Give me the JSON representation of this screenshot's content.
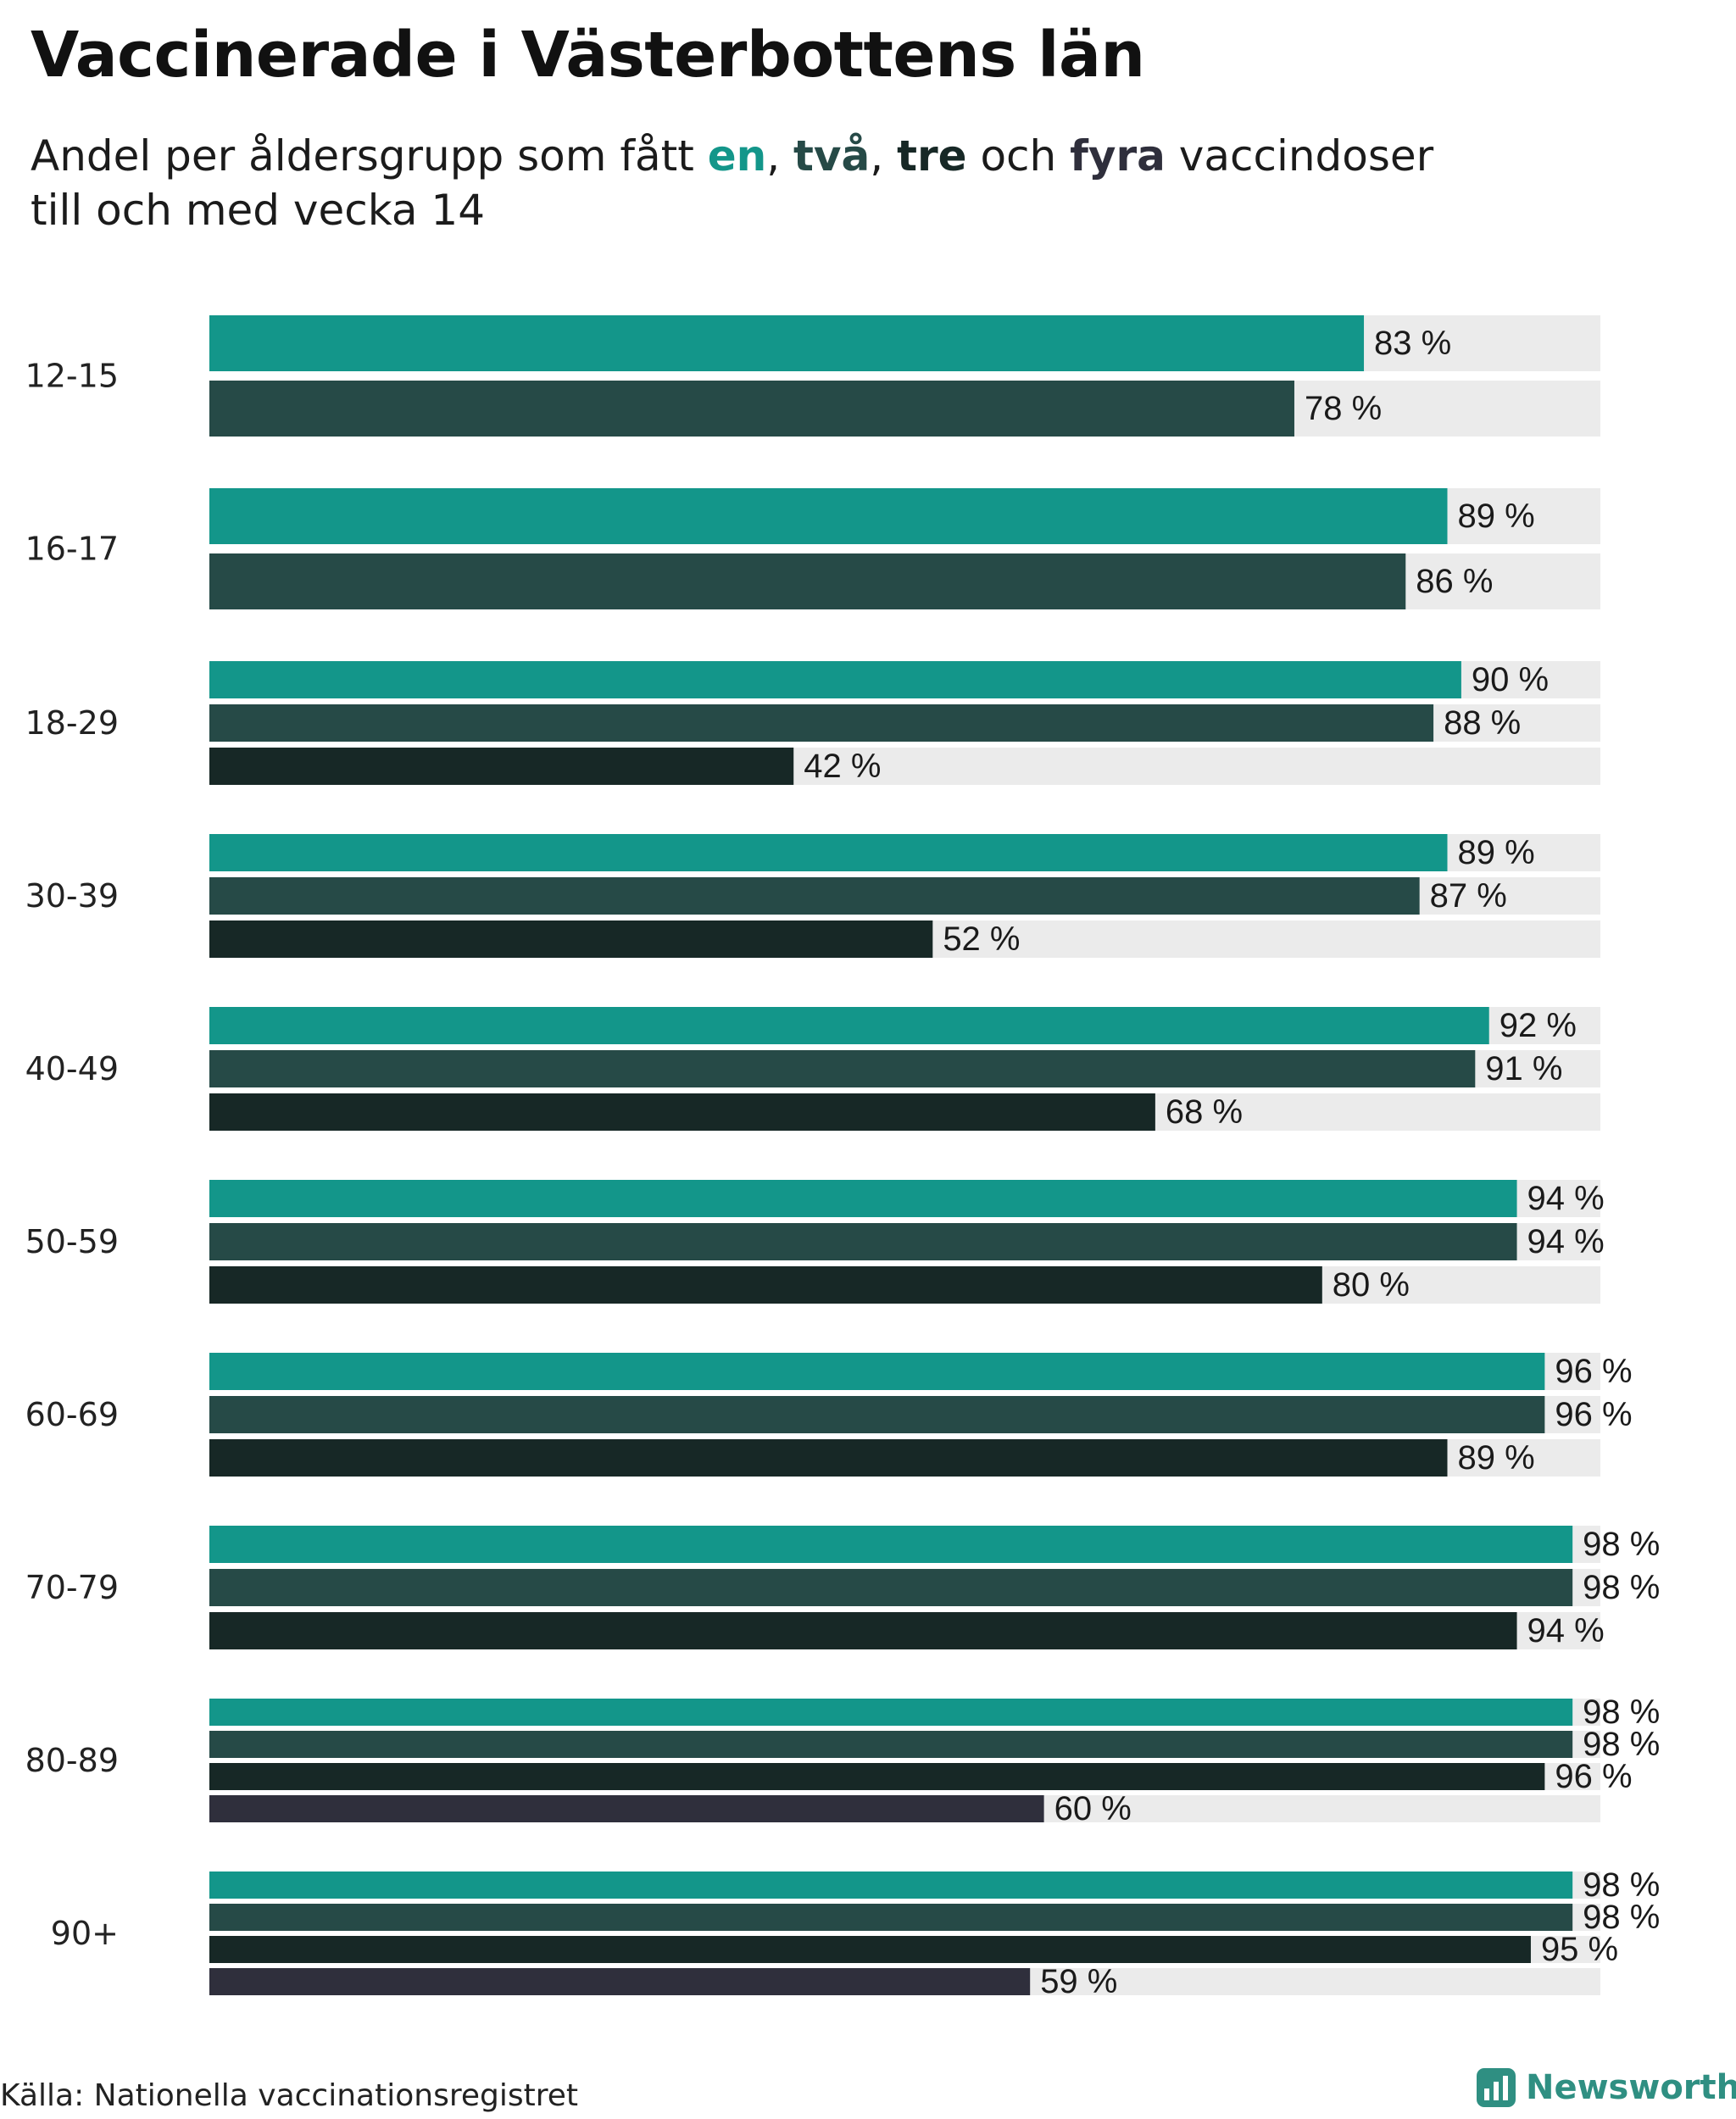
{
  "title": "Vaccinerade i Västerbottens län",
  "subtitle": {
    "prefix": "Andel per åldersgrupp som fått ",
    "en": "en",
    "sep1": ", ",
    "tva": "två",
    "sep2": ", ",
    "tre": "tre",
    "och": " och ",
    "fyra": "fyra",
    "suffix": " vaccindoser",
    "line2": "till och med vecka 14"
  },
  "colors": {
    "dose1": "#13968a",
    "dose2": "#264a47",
    "dose3": "#172826",
    "dose4": "#2f2f3c",
    "track": "#ebebeb",
    "subtitle_en": "#13968a",
    "subtitle_tva": "#264a47",
    "subtitle_tre": "#172826",
    "subtitle_fyra": "#2f2f3c"
  },
  "chart_data": {
    "type": "bar",
    "orientation": "horizontal",
    "title": "Vaccinerade i Västerbottens län",
    "subtitle": "Andel per åldersgrupp som fått en, två, tre och fyra vaccindoser till och med vecka 14",
    "xlim": [
      0,
      100
    ],
    "value_suffix": " %",
    "categories": [
      "12-15",
      "16-17",
      "18-29",
      "30-39",
      "40-49",
      "50-59",
      "60-69",
      "70-79",
      "80-89",
      "90+"
    ],
    "series": [
      {
        "name": "en",
        "values": [
          83,
          89,
          90,
          89,
          92,
          94,
          96,
          98,
          98,
          98
        ]
      },
      {
        "name": "två",
        "values": [
          78,
          86,
          88,
          87,
          91,
          94,
          96,
          98,
          98,
          98
        ]
      },
      {
        "name": "tre",
        "values": [
          null,
          null,
          42,
          52,
          68,
          80,
          89,
          94,
          96,
          95
        ]
      },
      {
        "name": "fyra",
        "values": [
          null,
          null,
          null,
          null,
          null,
          null,
          null,
          null,
          60,
          59
        ]
      }
    ]
  },
  "source": "Källa: Nationella vaccinationsregistret",
  "brand": {
    "name": "Newsworthy",
    "logo_icon": "bar-chart-badge-icon"
  }
}
